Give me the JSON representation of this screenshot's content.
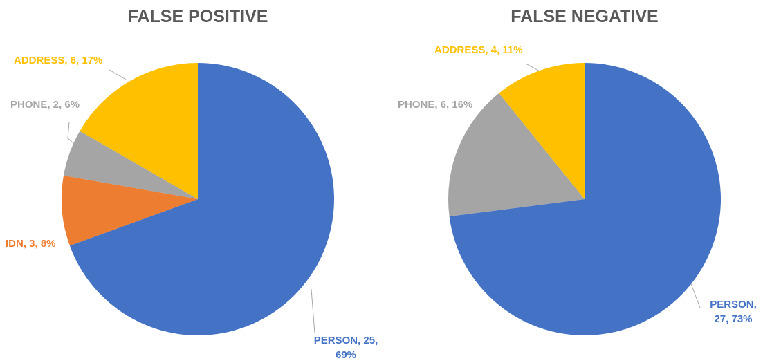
{
  "chart_data": [
    {
      "type": "pie",
      "title": "FALSE POSITIVE",
      "categories": [
        "PERSON",
        "IDN",
        "PHONE",
        "ADDRESS"
      ],
      "values": [
        25,
        3,
        2,
        6
      ],
      "value_labels": [
        "PERSON, 25, 69%",
        "IDN, 3, 8%",
        "PHONE, 2, 6%",
        "ADDRESS, 6, 17%"
      ],
      "colors": [
        "#4472c4",
        "#ed7d31",
        "#a5a5a5",
        "#ffc000"
      ]
    },
    {
      "type": "pie",
      "title": "FALSE NEGATIVE",
      "categories": [
        "PERSON",
        "PHONE",
        "ADDRESS"
      ],
      "values": [
        27,
        6,
        4
      ],
      "value_labels": [
        "PERSON, 27, 73%",
        "PHONE, 6, 16%",
        "ADDRESS, 4, 11%"
      ],
      "colors": [
        "#4472c4",
        "#a5a5a5",
        "#ffc000"
      ]
    }
  ]
}
